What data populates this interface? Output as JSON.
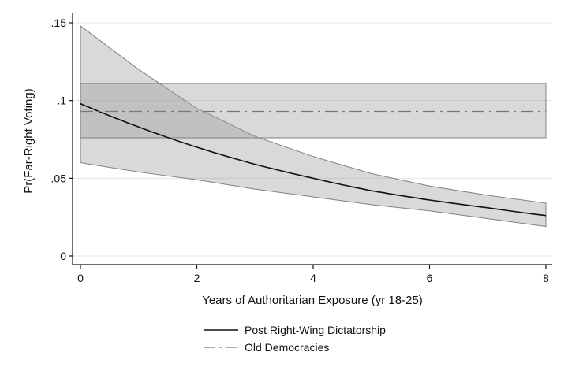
{
  "chart_data": {
    "type": "line",
    "xlabel": "Years of Authoritarian Exposure (yr 18-25)",
    "ylabel": "Pr(Far-Right Voting)",
    "xlim": [
      0,
      8
    ],
    "ylim": [
      0,
      0.15
    ],
    "x_ticks": [
      {
        "value": 0,
        "label": "0"
      },
      {
        "value": 2,
        "label": "2"
      },
      {
        "value": 4,
        "label": "4"
      },
      {
        "value": 6,
        "label": "6"
      },
      {
        "value": 8,
        "label": "8"
      }
    ],
    "y_ticks": [
      {
        "value": 0,
        "label": "0"
      },
      {
        "value": 0.05,
        "label": ".05"
      },
      {
        "value": 0.1,
        "label": ".1"
      },
      {
        "value": 0.15,
        "label": ".15"
      }
    ],
    "grid": true,
    "legend_position": "bottom",
    "series": [
      {
        "name": "Post Right-Wing Dictatorship",
        "style": "solid",
        "color": "#111111",
        "x": [
          0,
          1,
          2,
          3,
          4,
          5,
          6,
          7,
          8
        ],
        "y": [
          0.098,
          0.083,
          0.07,
          0.059,
          0.05,
          0.042,
          0.036,
          0.031,
          0.026
        ],
        "ci_upper": [
          0.148,
          0.12,
          0.095,
          0.077,
          0.064,
          0.053,
          0.045,
          0.039,
          0.034
        ],
        "ci_lower": [
          0.06,
          0.054,
          0.049,
          0.043,
          0.038,
          0.033,
          0.029,
          0.024,
          0.019
        ]
      },
      {
        "name": "Old Democracies",
        "style": "dash-dot",
        "color": "#777777",
        "x": [
          0,
          8
        ],
        "y": [
          0.093,
          0.093
        ],
        "ci_upper": [
          0.111,
          0.111
        ],
        "ci_lower": [
          0.076,
          0.076
        ]
      }
    ],
    "colors": {
      "band_fill": "#9a9a9a",
      "band_stroke": "#808080",
      "grid": "#e4e4e4",
      "axis": "#111111"
    }
  }
}
